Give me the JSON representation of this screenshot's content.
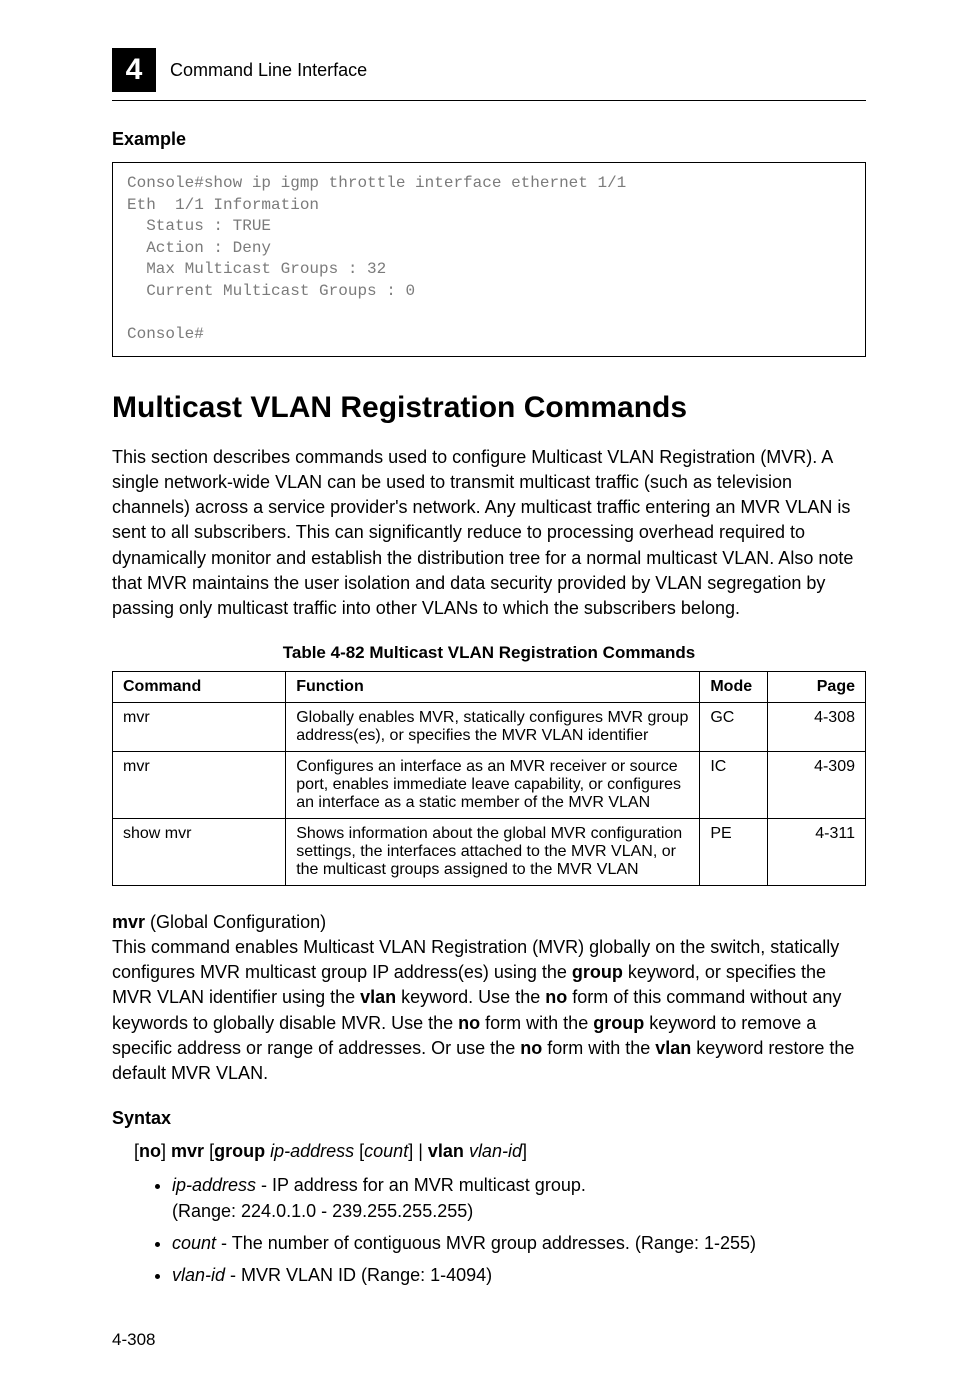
{
  "header": {
    "chapter_number": "4",
    "section_path": "Command Line Interface"
  },
  "example": {
    "label": "Example",
    "code": "Console#show ip igmp throttle interface ethernet 1/1\nEth  1/1 Information\n  Status : TRUE\n  Action : Deny\n  Max Multicast Groups : 32\n  Current Multicast Groups : 0\n\nConsole#"
  },
  "title": "Multicast VLAN Registration Commands",
  "intro": "This section describes commands used to configure Multicast VLAN Registration (MVR). A single network-wide VLAN can be used to transmit multicast traffic (such as television channels) across a service provider's network. Any multicast traffic entering an MVR VLAN is sent to all subscribers. This can significantly reduce to processing overhead required to dynamically monitor and establish the distribution tree for a normal multicast VLAN. Also note that MVR maintains the user isolation and data security provided by VLAN segregation by passing only multicast traffic into other VLANs to which the subscribers belong.",
  "table": {
    "caption": "Table 4-82  Multicast VLAN Registration Commands",
    "headers": {
      "c1": "Command",
      "c2": "Function",
      "c3": "Mode",
      "c4": "Page"
    },
    "rows": [
      {
        "c1": "mvr",
        "c2": "Globally enables MVR, statically configures MVR group address(es), or specifies the MVR VLAN identifier",
        "c3": "GC",
        "c4": "4-308"
      },
      {
        "c1": "mvr",
        "c2": "Configures an interface as an MVR receiver or source port, enables immediate leave capability, or configures an interface as a static member of the MVR VLAN",
        "c3": "IC",
        "c4": "4-309"
      },
      {
        "c1": "show mvr",
        "c2": "Shows information about the global MVR configuration settings, the interfaces attached to the MVR VLAN, or the multicast groups assigned to the MVR VLAN",
        "c3": "PE",
        "c4": "4-311"
      }
    ]
  },
  "mvr": {
    "heading_bold": "mvr",
    "heading_rest": " (Global Configuration)",
    "desc_parts": {
      "p1": "This command enables Multicast VLAN Registration (MVR) globally on the switch, statically configures MVR multicast group IP address(es) using the ",
      "kw1": "group",
      "p2": " keyword, or specifies the MVR VLAN identifier using the ",
      "kw2": "vlan",
      "p3": " keyword. Use the ",
      "kw3": "no",
      "p4": " form of this command without any keywords to globally disable MVR. Use the ",
      "kw4": "no",
      "p5": " form with the ",
      "kw5": "group",
      "p6": " keyword to remove a specific address or range of addresses. Or use the ",
      "kw6": "no",
      "p7": " form with the ",
      "kw7": "vlan",
      "p8": " keyword restore the default MVR VLAN."
    }
  },
  "syntax": {
    "label": "Syntax",
    "line": {
      "open": "[",
      "no": "no",
      "close_open": "] ",
      "mvr": "mvr",
      "sp1": " [",
      "group": "group",
      "sp2": " ",
      "ip": "ip-address",
      "sp3": " [",
      "count": "count",
      "sp4": "] | ",
      "vlan": "vlan",
      "sp5": " ",
      "vlanid": "vlan-id",
      "end": "]"
    },
    "args": {
      "a1_it": "ip-address",
      "a1_rest": " - IP address for an MVR multicast group.",
      "a1_line2": "(Range: 224.0.1.0 - 239.255.255.255)",
      "a2_it": "count",
      "a2_rest": " - The number of contiguous MVR group addresses. (Range: 1-255)",
      "a3_it": "vlan-id",
      "a3_rest": " - MVR VLAN ID (Range: 1-4094)"
    }
  },
  "footer": "4-308"
}
